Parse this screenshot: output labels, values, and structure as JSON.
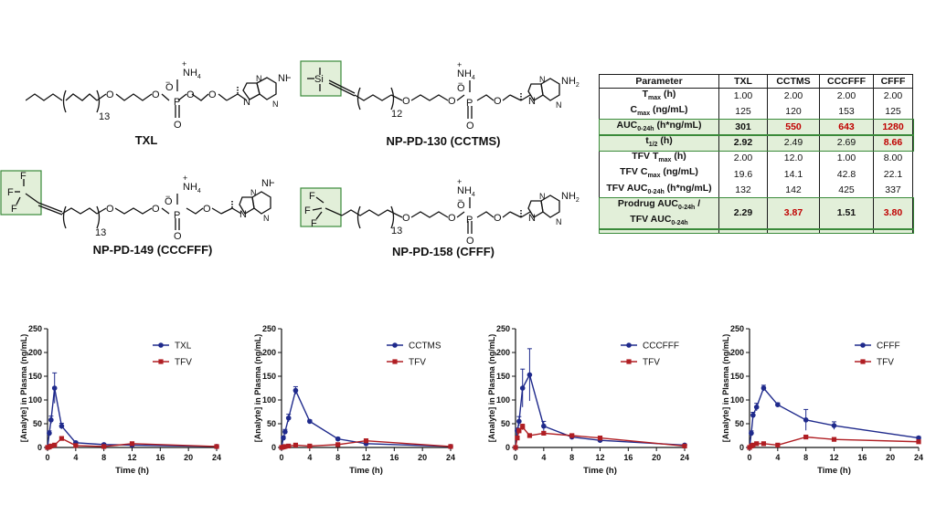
{
  "colors": {
    "series_pro": "#1f2a8c",
    "series_tfv": "#b01e23",
    "highlight_fill": "#e2efd9",
    "highlight_border": "#3a8a3a",
    "red_text": "#c00000"
  },
  "structures": {
    "txl": {
      "label": "TXL",
      "chain_sub": "13"
    },
    "cctms": {
      "label": "NP-PD-130 (CCTMS)",
      "chain_sub": "12"
    },
    "cccfff": {
      "label": "NP-PD-149 (CCCFFF)",
      "chain_sub": "13"
    },
    "cfff": {
      "label": "NP-PD-158 (CFFF)",
      "chain_sub": "13"
    },
    "atoms": {
      "nh4": "NH",
      "nh4_sub": "4",
      "plus": "+",
      "minus": "−",
      "o": "O",
      "p": "P",
      "n": "N",
      "nh2": "NH",
      "nh2_sub": "2",
      "si": "Si",
      "f": "F"
    }
  },
  "table": {
    "headers": [
      "Parameter",
      "TXL",
      "CCTMS",
      "CCCFFF",
      "CFFF"
    ],
    "rows": [
      {
        "p_main": "T",
        "p_sub": "max",
        "p_tail": " (h)",
        "values": [
          "1.00",
          "2.00",
          "2.00",
          "2.00"
        ],
        "highlight": false,
        "bold": false,
        "red": [
          false,
          false,
          false,
          false
        ]
      },
      {
        "p_main": "C",
        "p_sub": "max",
        "p_tail": " (ng/mL)",
        "values": [
          "125",
          "120",
          "153",
          "125"
        ],
        "highlight": false,
        "bold": false,
        "red": [
          false,
          false,
          false,
          false
        ]
      },
      {
        "p_main": "AUC",
        "p_sub": "0-24h",
        "p_tail": " (h*ng/mL)",
        "values": [
          "301",
          "550",
          "643",
          "1280"
        ],
        "highlight": true,
        "bold": true,
        "red": [
          false,
          true,
          true,
          true
        ]
      },
      {
        "p_main": "t",
        "p_sub": "1/2",
        "p_tail": " (h)",
        "values": [
          "2.92",
          "2.49",
          "2.69",
          "8.66"
        ],
        "highlight": true,
        "bold": false,
        "red": [
          false,
          false,
          false,
          true
        ],
        "first_bold": true
      },
      {
        "p_main": "TFV T",
        "p_sub": "max",
        "p_tail": " (h)",
        "values": [
          "2.00",
          "12.0",
          "1.00",
          "8.00"
        ],
        "highlight": false,
        "bold": false,
        "red": [
          false,
          false,
          false,
          false
        ]
      },
      {
        "p_main": "TFV C",
        "p_sub": "max",
        "p_tail": " (ng/mL)",
        "values": [
          "19.6",
          "14.1",
          "42.8",
          "22.1"
        ],
        "highlight": false,
        "bold": false,
        "red": [
          false,
          false,
          false,
          false
        ]
      },
      {
        "p_main": "TFV AUC",
        "p_sub": "0-24h",
        "p_tail": " (h*ng/mL)",
        "values": [
          "132",
          "142",
          "425",
          "337"
        ],
        "highlight": false,
        "bold": false,
        "red": [
          false,
          false,
          false,
          false
        ]
      }
    ],
    "last_row": {
      "line1_main": "Prodrug AUC",
      "line1_sub": "0-24h",
      "line1_tail": " /",
      "line2_main": "TFV AUC",
      "line2_sub": "0-24h",
      "values": [
        "2.29",
        "3.87",
        "1.51",
        "3.80"
      ],
      "red": [
        false,
        true,
        false,
        true
      ]
    }
  },
  "chart_data": [
    {
      "type": "line",
      "xlabel": "Time (h)",
      "ylabel": "[Analyte] in Plasma (ng/mL)",
      "xlim": [
        0,
        24
      ],
      "ylim": [
        0,
        250
      ],
      "xticks": [
        0,
        4,
        8,
        12,
        16,
        20,
        24
      ],
      "yticks": [
        0,
        50,
        100,
        150,
        200,
        250
      ],
      "legend": "top-right",
      "series": [
        {
          "name": "TXL",
          "x": [
            0,
            0.25,
            0.5,
            1,
            2,
            4,
            8,
            12,
            24
          ],
          "y": [
            0,
            30,
            58,
            125,
            45,
            10,
            6,
            5,
            2
          ],
          "err": [
            0,
            5,
            8,
            32,
            6,
            3,
            2,
            2,
            1
          ]
        },
        {
          "name": "TFV",
          "x": [
            0,
            0.25,
            0.5,
            1,
            2,
            4,
            8,
            12,
            24
          ],
          "y": [
            0,
            1,
            3,
            5,
            19,
            4,
            2,
            8,
            2
          ],
          "err": [
            0,
            0,
            1,
            1,
            3,
            1,
            1,
            2,
            1
          ]
        }
      ]
    },
    {
      "type": "line",
      "xlabel": "Time (h)",
      "ylabel": "[Analyte] in Plasma (ng/mL)",
      "xlim": [
        0,
        24
      ],
      "ylim": [
        0,
        250
      ],
      "xticks": [
        0,
        4,
        8,
        12,
        16,
        20,
        24
      ],
      "yticks": [
        0,
        50,
        100,
        150,
        200,
        250
      ],
      "legend": "top-right",
      "series": [
        {
          "name": "CCTMS",
          "x": [
            0,
            0.25,
            0.5,
            1,
            2,
            4,
            8,
            12,
            24
          ],
          "y": [
            0,
            20,
            33,
            62,
            120,
            55,
            18,
            8,
            2
          ],
          "err": [
            0,
            4,
            5,
            8,
            8,
            3,
            3,
            2,
            1
          ]
        },
        {
          "name": "TFV",
          "x": [
            0,
            0.25,
            0.5,
            1,
            2,
            4,
            8,
            12,
            24
          ],
          "y": [
            0,
            1,
            2,
            3,
            5,
            3,
            6,
            14,
            2
          ],
          "err": [
            0,
            0,
            1,
            1,
            1,
            1,
            2,
            4,
            1
          ]
        }
      ]
    },
    {
      "type": "line",
      "xlabel": "Time (h)",
      "ylabel": "[Analyte] in Plasma (ng/mL)",
      "xlim": [
        0,
        24
      ],
      "ylim": [
        0,
        250
      ],
      "xticks": [
        0,
        4,
        8,
        12,
        16,
        20,
        24
      ],
      "yticks": [
        0,
        50,
        100,
        150,
        200,
        250
      ],
      "legend": "top-right",
      "series": [
        {
          "name": "CCCFFF",
          "x": [
            0,
            0.25,
            0.5,
            1,
            2,
            4,
            8,
            12,
            24
          ],
          "y": [
            0,
            35,
            55,
            125,
            153,
            45,
            22,
            15,
            5
          ],
          "err": [
            0,
            6,
            10,
            40,
            55,
            10,
            3,
            3,
            1
          ]
        },
        {
          "name": "TFV",
          "x": [
            0,
            0.25,
            0.5,
            1,
            2,
            4,
            8,
            12,
            24
          ],
          "y": [
            0,
            20,
            35,
            43,
            25,
            30,
            25,
            20,
            3
          ],
          "err": [
            0,
            4,
            5,
            6,
            4,
            3,
            3,
            3,
            1
          ]
        }
      ]
    },
    {
      "type": "line",
      "xlabel": "Time (h)",
      "ylabel": "[Analyte] in Plasma (ng/mL)",
      "xlim": [
        0,
        24
      ],
      "ylim": [
        0,
        250
      ],
      "xticks": [
        0,
        4,
        8,
        12,
        16,
        20,
        24
      ],
      "yticks": [
        0,
        50,
        100,
        150,
        200,
        250
      ],
      "legend": "top-right",
      "series": [
        {
          "name": "CFFF",
          "x": [
            0,
            0.25,
            0.5,
            1,
            2,
            4,
            8,
            12,
            24
          ],
          "y": [
            0,
            30,
            68,
            85,
            125,
            90,
            58,
            46,
            20
          ],
          "err": [
            0,
            5,
            6,
            8,
            6,
            4,
            22,
            8,
            3
          ]
        },
        {
          "name": "TFV",
          "x": [
            0,
            0.25,
            0.5,
            1,
            2,
            4,
            8,
            12,
            24
          ],
          "y": [
            0,
            3,
            5,
            8,
            8,
            5,
            22,
            17,
            12
          ],
          "err": [
            0,
            1,
            1,
            2,
            2,
            1,
            3,
            2,
            2
          ]
        }
      ]
    }
  ]
}
